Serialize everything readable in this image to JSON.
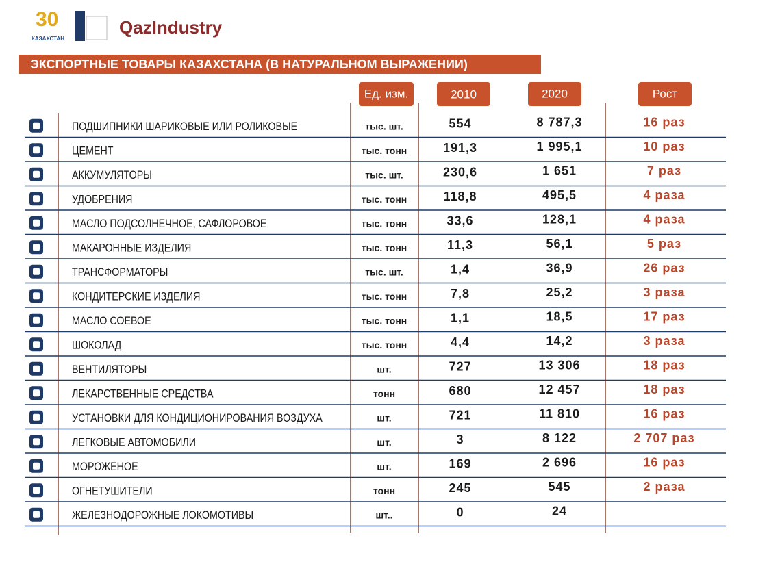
{
  "header": {
    "logo_number": "30",
    "logo_country": "КАЗАХСТАН",
    "brand": "QazIndustry",
    "title": "ЭКСПОРТНЫЕ ТОВАРЫ КАЗАХСТАНА (В НАТУРАЛЬНОМ ВЫРАЖЕНИИ)"
  },
  "table": {
    "columns": {
      "unit": "Ед. изм.",
      "y2010": "2010",
      "y2020": "2020",
      "growth": "Рост"
    },
    "rows": [
      {
        "name": "ПОДШИПНИКИ ШАРИКОВЫЕ ИЛИ РОЛИКОВЫЕ",
        "unit": "тыс. шт.",
        "y2010": "554",
        "y2020": "8 787,3",
        "growth": "16 раз"
      },
      {
        "name": "ЦЕМЕНТ",
        "unit": "тыс. тонн",
        "y2010": "191,3",
        "y2020": "1 995,1",
        "growth": "10 раз"
      },
      {
        "name": "АККУМУЛЯТОРЫ",
        "unit": "тыс. шт.",
        "y2010": "230,6",
        "y2020": "1 651",
        "growth": "7 раз"
      },
      {
        "name": "УДОБРЕНИЯ",
        "unit": "тыс. тонн",
        "y2010": "118,8",
        "y2020": "495,5",
        "growth": "4 раза"
      },
      {
        "name": "МАСЛО ПОДСОЛНЕЧНОЕ, САФЛОРОВОЕ",
        "unit": "тыс. тонн",
        "y2010": "33,6",
        "y2020": "128,1",
        "growth": "4 раза"
      },
      {
        "name": "МАКАРОННЫЕ ИЗДЕЛИЯ",
        "unit": "тыс. тонн",
        "y2010": "11,3",
        "y2020": "56,1",
        "growth": "5 раз"
      },
      {
        "name": "ТРАНСФОРМАТОРЫ",
        "unit": "тыс. шт.",
        "y2010": "1,4",
        "y2020": "36,9",
        "growth": "26 раз"
      },
      {
        "name": "КОНДИТЕРСКИЕ ИЗДЕЛИЯ",
        "unit": "тыс. тонн",
        "y2010": "7,8",
        "y2020": "25,2",
        "growth": "3 раза"
      },
      {
        "name": "МАСЛО СОЕВОЕ",
        "unit": "тыс. тонн",
        "y2010": "1,1",
        "y2020": "18,5",
        "growth": "17 раз"
      },
      {
        "name": "ШОКОЛАД",
        "unit": "тыс. тонн",
        "y2010": "4,4",
        "y2020": "14,2",
        "growth": "3 раза"
      },
      {
        "name": "ВЕНТИЛЯТОРЫ",
        "unit": "шт.",
        "y2010": "727",
        "y2020": "13 306",
        "growth": "18 раз"
      },
      {
        "name": "ЛЕКАРСТВЕННЫЕ СРЕДСТВА",
        "unit": "тонн",
        "y2010": "680",
        "y2020": "12 457",
        "growth": "18 раз"
      },
      {
        "name": "УСТАНОВКИ ДЛЯ КОНДИЦИОНИРОВАНИЯ ВОЗДУХА",
        "unit": "шт.",
        "y2010": "721",
        "y2020": "11 810",
        "growth": "16 раз"
      },
      {
        "name": "ЛЕГКОВЫЕ АВТОМОБИЛИ",
        "unit": "шт.",
        "y2010": "3",
        "y2020": "8 122",
        "growth": "2 707 раз"
      },
      {
        "name": "МОРОЖЕНОЕ",
        "unit": "шт.",
        "y2010": "169",
        "y2020": "2 696",
        "growth": "16 раз"
      },
      {
        "name": "ОГНЕТУШИТЕЛИ",
        "unit": "тонн",
        "y2010": "245",
        "y2020": "545",
        "growth": "2 раза"
      },
      {
        "name": "ЖЕЛЕЗНОДОРОЖНЫЕ ЛОКОМОТИВЫ",
        "unit": "шт..",
        "y2010": "0",
        "y2020": "24"
      }
    ]
  }
}
